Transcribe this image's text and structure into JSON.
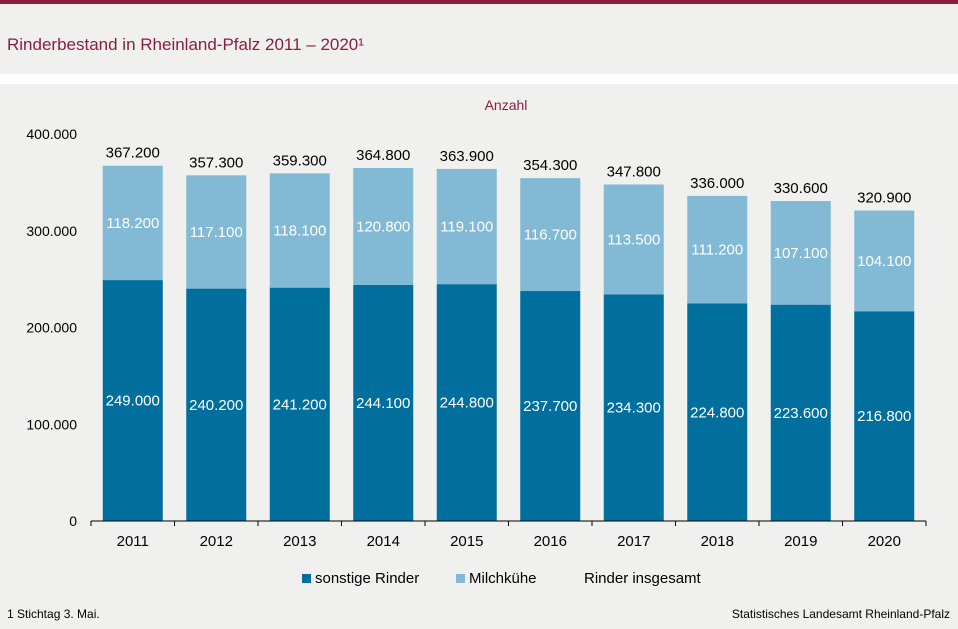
{
  "colors": {
    "brand": "#8b1e3f",
    "series_dark": "#006f9e",
    "series_light": "#82b9d4",
    "text": "#000000",
    "background": "#f0f0ef"
  },
  "header": {
    "title": "Rinderbestand in Rheinland-Pfalz 2011 – 2020¹"
  },
  "chart_data": {
    "type": "bar",
    "stacked": true,
    "unit_label": "Anzahl",
    "categories": [
      "2011",
      "2012",
      "2013",
      "2014",
      "2015",
      "2016",
      "2017",
      "2018",
      "2019",
      "2020"
    ],
    "series": [
      {
        "name": "sonstige Rinder",
        "values": [
          249000,
          240200,
          241200,
          244100,
          244800,
          237700,
          234300,
          224800,
          223600,
          216800
        ],
        "labels": [
          "249.000",
          "240.200",
          "241.200",
          "244.100",
          "244.800",
          "237.700",
          "234.300",
          "224.800",
          "223.600",
          "216.800"
        ]
      },
      {
        "name": "Milchkühe",
        "values": [
          118200,
          117100,
          118100,
          120800,
          119100,
          116700,
          113500,
          111200,
          107100,
          104100
        ],
        "labels": [
          "118.200",
          "117.100",
          "118.100",
          "120.800",
          "119.100",
          "116.700",
          "113.500",
          "111.200",
          "107.100",
          "104.100"
        ]
      }
    ],
    "totals": {
      "name": "Rinder insgesamt",
      "values": [
        367200,
        357300,
        359300,
        364800,
        363900,
        354300,
        347800,
        336000,
        330600,
        320900
      ],
      "labels": [
        "367.200",
        "357.300",
        "359.300",
        "364.800",
        "363.900",
        "354.300",
        "347.800",
        "336.000",
        "330.600",
        "320.900"
      ]
    },
    "yticks": [
      0,
      100000,
      200000,
      300000,
      400000
    ],
    "ytick_labels": [
      "0",
      "100.000",
      "200.000",
      "300.000",
      "400.000"
    ],
    "ylim": [
      0,
      400000
    ],
    "grid": false,
    "legend_position": "bottom"
  },
  "legend": {
    "sonstige": "sonstige Rinder",
    "milch": "Milchkühe",
    "total": "Rinder insgesamt"
  },
  "footer": {
    "footnote": "1 Stichtag 3. Mai.",
    "source": "Statistisches Landesamt Rheinland-Pfalz"
  }
}
